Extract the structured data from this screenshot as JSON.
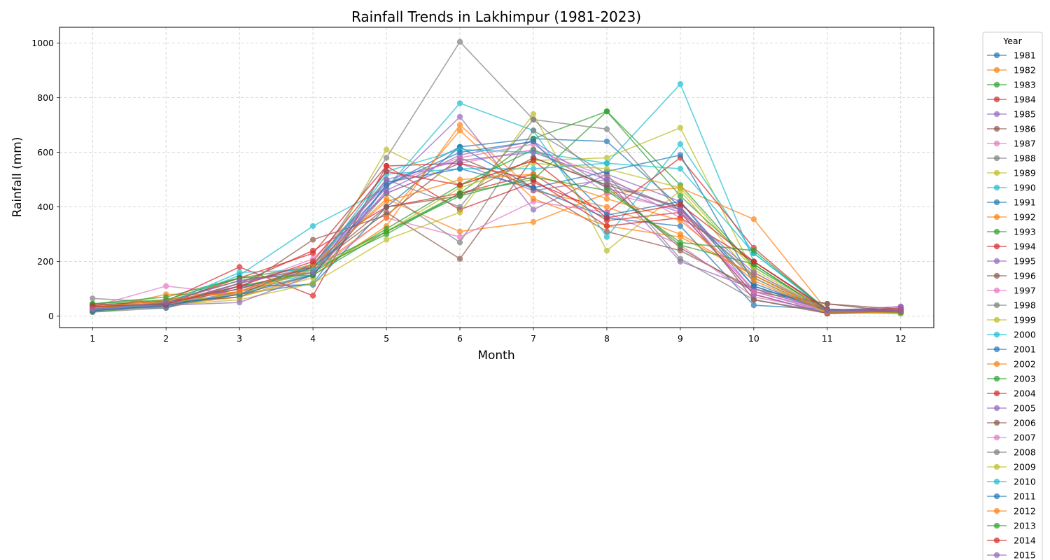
{
  "chart_data": {
    "type": "line",
    "title": "Rainfall Trends in Lakhimpur (1981-2023)",
    "xlabel": "Month",
    "ylabel": "Rainfall (mm)",
    "x": [
      1,
      2,
      3,
      4,
      5,
      6,
      7,
      8,
      9,
      10,
      11,
      12
    ],
    "xlim": [
      0.55,
      12.45
    ],
    "ylim": [
      -42,
      1058
    ],
    "yticks": [
      0,
      200,
      400,
      600,
      800,
      1000
    ],
    "grid": true,
    "legend": {
      "title": "Year",
      "placement": "outside-right"
    },
    "palette": [
      "#1f77b4",
      "#ff7f0e",
      "#2ca02c",
      "#d62728",
      "#9467bd",
      "#8c564b",
      "#e377c2",
      "#7f7f7f",
      "#bcbd22",
      "#17becf"
    ],
    "series": [
      {
        "name": "1981",
        "values": [
          30,
          35,
          80,
          120,
          480,
          620,
          650,
          640,
          400,
          110,
          25,
          20
        ]
      },
      {
        "name": "1982",
        "values": [
          25,
          40,
          70,
          150,
          330,
          700,
          460,
          400,
          300,
          150,
          15,
          15
        ]
      },
      {
        "name": "1983",
        "values": [
          40,
          55,
          130,
          170,
          300,
          450,
          500,
          750,
          480,
          180,
          20,
          15
        ]
      },
      {
        "name": "1984",
        "values": [
          35,
          45,
          120,
          240,
          400,
          450,
          520,
          350,
          380,
          80,
          10,
          30
        ]
      },
      {
        "name": "1985",
        "values": [
          20,
          40,
          90,
          190,
          470,
          730,
          390,
          520,
          420,
          90,
          15,
          35
        ]
      },
      {
        "name": "1986",
        "values": [
          30,
          50,
          100,
          280,
          370,
          580,
          470,
          310,
          240,
          100,
          45,
          25
        ]
      },
      {
        "name": "1987",
        "values": [
          35,
          110,
          80,
          190,
          450,
          560,
          610,
          510,
          360,
          100,
          20,
          20
        ]
      },
      {
        "name": "1988",
        "values": [
          65,
          50,
          100,
          180,
          580,
          1005,
          720,
          685,
          380,
          150,
          20,
          10
        ]
      },
      {
        "name": "1989",
        "values": [
          20,
          50,
          70,
          140,
          610,
          480,
          570,
          580,
          690,
          160,
          15,
          15
        ]
      },
      {
        "name": "1990",
        "values": [
          25,
          40,
          150,
          330,
          470,
          780,
          680,
          290,
          630,
          230,
          20,
          15
        ]
      },
      {
        "name": "1991",
        "values": [
          30,
          30,
          110,
          115,
          400,
          620,
          470,
          360,
          330,
          40,
          25,
          20
        ]
      },
      {
        "name": "1992",
        "values": [
          20,
          80,
          80,
          180,
          430,
          310,
          345,
          450,
          470,
          355,
          20,
          20
        ]
      },
      {
        "name": "1993",
        "values": [
          45,
          70,
          140,
          180,
          310,
          450,
          650,
          750,
          440,
          190,
          15,
          15
        ]
      },
      {
        "name": "1994",
        "values": [
          40,
          55,
          180,
          75,
          550,
          390,
          490,
          380,
          580,
          250,
          20,
          25
        ]
      },
      {
        "name": "1995",
        "values": [
          25,
          40,
          120,
          180,
          450,
          560,
          460,
          500,
          200,
          100,
          20,
          35
        ]
      },
      {
        "name": "1996",
        "values": [
          30,
          50,
          70,
          180,
          380,
          210,
          580,
          480,
          250,
          90,
          45,
          15
        ]
      },
      {
        "name": "1997",
        "values": [
          20,
          45,
          100,
          160,
          360,
          290,
          420,
          380,
          260,
          70,
          20,
          20
        ]
      },
      {
        "name": "1998",
        "values": [
          15,
          30,
          90,
          150,
          450,
          270,
          680,
          520,
          210,
          60,
          15,
          10
        ]
      },
      {
        "name": "1999",
        "values": [
          20,
          40,
          60,
          120,
          280,
          380,
          740,
          240,
          460,
          140,
          10,
          15
        ]
      },
      {
        "name": "2000",
        "values": [
          35,
          50,
          110,
          150,
          520,
          540,
          540,
          560,
          850,
          200,
          25,
          20
        ]
      },
      {
        "name": "2001",
        "values": [
          20,
          45,
          80,
          190,
          490,
          540,
          470,
          530,
          590,
          120,
          20,
          15
        ]
      },
      {
        "name": "2002",
        "values": [
          25,
          55,
          90,
          170,
          360,
          680,
          430,
          330,
          290,
          150,
          15,
          20
        ]
      },
      {
        "name": "2003",
        "values": [
          15,
          40,
          110,
          160,
          320,
          480,
          610,
          470,
          260,
          190,
          15,
          15
        ]
      },
      {
        "name": "2004",
        "values": [
          25,
          45,
          140,
          230,
          550,
          560,
          500,
          330,
          360,
          200,
          20,
          20
        ]
      },
      {
        "name": "2005",
        "values": [
          20,
          40,
          50,
          150,
          460,
          590,
          640,
          470,
          380,
          80,
          10,
          20
        ]
      },
      {
        "name": "2006",
        "values": [
          30,
          45,
          100,
          180,
          400,
          440,
          580,
          480,
          400,
          60,
          10,
          15
        ]
      },
      {
        "name": "2007",
        "values": [
          25,
          40,
          110,
          210,
          480,
          580,
          630,
          450,
          390,
          90,
          20,
          15
        ]
      },
      {
        "name": "2008",
        "values": [
          20,
          35,
          120,
          190,
          500,
          400,
          720,
          490,
          390,
          140,
          15,
          15
        ]
      },
      {
        "name": "2009",
        "values": [
          30,
          50,
          80,
          170,
          310,
          470,
          560,
          540,
          470,
          170,
          20,
          10
        ]
      },
      {
        "name": "2010",
        "values": [
          25,
          45,
          160,
          170,
          530,
          610,
          600,
          560,
          540,
          230,
          25,
          15
        ]
      },
      {
        "name": "2011",
        "values": [
          20,
          40,
          80,
          150,
          480,
          600,
          640,
          370,
          420,
          110,
          20,
          15
        ]
      },
      {
        "name": "2012",
        "values": [
          30,
          60,
          90,
          190,
          420,
          500,
          520,
          430,
          350,
          130,
          15,
          15
        ]
      },
      {
        "name": "2013",
        "values": [
          45,
          60,
          140,
          150,
          310,
          440,
          510,
          460,
          270,
          240,
          20,
          15
        ]
      },
      {
        "name": "2014",
        "values": [
          35,
          45,
          110,
          200,
          530,
          480,
          570,
          360,
          410,
          200,
          25,
          20
        ]
      },
      {
        "name": "2015",
        "values": [
          25,
          50,
          130,
          160,
          500,
          570,
          600,
          500,
          390,
          160,
          20,
          20
        ]
      }
    ]
  }
}
